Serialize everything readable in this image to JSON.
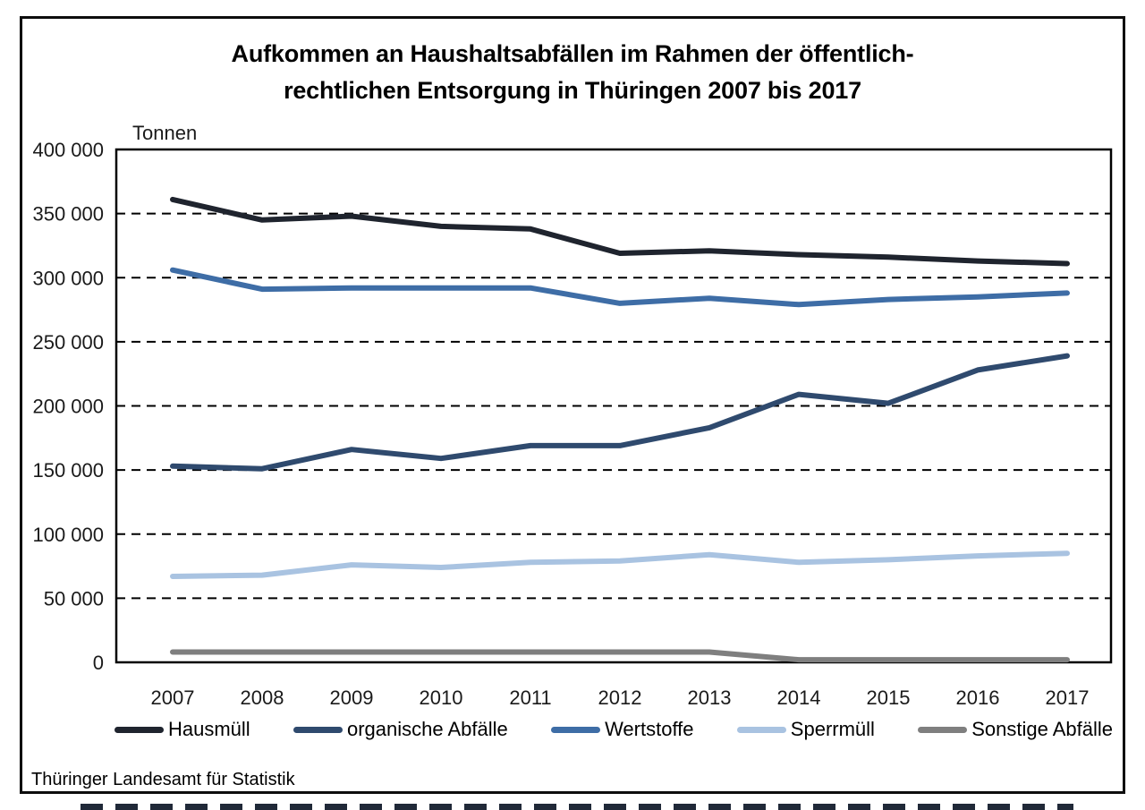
{
  "title": {
    "line1": "Aufkommen an Haushaltsabfällen im Rahmen der öffentlich-",
    "line2": "rechtlichen Entsorgung in Thüringen 2007 bis 2017"
  },
  "footer": {
    "source": "Thüringer Landesamt für Statistik"
  },
  "colors": {
    "frame": "#000000",
    "gridline": "#000000",
    "axis_text": "#1a1a1a"
  },
  "chart_data": {
    "type": "line",
    "title": "Aufkommen an Haushaltsabfällen im Rahmen der öffentlich-rechtlichen Entsorgung in Thüringen 2007 bis 2017",
    "ylabel": "Tonnen",
    "xlabel": "",
    "ylim": [
      0,
      400000
    ],
    "grid": "horizontal-dashed",
    "legend_position": "bottom",
    "x_tick_labels": [
      "2007",
      "2008",
      "2009",
      "2010",
      "2011",
      "2012",
      "2013",
      "2014",
      "2015",
      "2016",
      "2017"
    ],
    "y_ticks": [
      {
        "value": 0,
        "label": "0"
      },
      {
        "value": 50000,
        "label": "50 000"
      },
      {
        "value": 100000,
        "label": "100 000"
      },
      {
        "value": 150000,
        "label": "150 000"
      },
      {
        "value": 200000,
        "label": "200 000"
      },
      {
        "value": 250000,
        "label": "250 000"
      },
      {
        "value": 300000,
        "label": "300 000"
      },
      {
        "value": 350000,
        "label": "350 000"
      },
      {
        "value": 400000,
        "label": "400 000"
      }
    ],
    "categories": [
      2007,
      2008,
      2009,
      2010,
      2011,
      2012,
      2013,
      2014,
      2015,
      2016,
      2017
    ],
    "series": [
      {
        "name": "Hausmüll",
        "color": "#1f242e",
        "values": [
          361000,
          345000,
          348000,
          340000,
          338000,
          319000,
          321000,
          318000,
          316000,
          313000,
          311000
        ]
      },
      {
        "name": "organische Abfälle",
        "color": "#2f4a6e",
        "values": [
          153000,
          151000,
          166000,
          159000,
          169000,
          169000,
          183000,
          209000,
          202000,
          228000,
          239000
        ]
      },
      {
        "name": "Wertstoffe",
        "color": "#3e6da6",
        "values": [
          306000,
          291000,
          292000,
          292000,
          292000,
          280000,
          284000,
          279000,
          283000,
          285000,
          288000
        ]
      },
      {
        "name": "Sperrmüll",
        "color": "#a9c3e1",
        "values": [
          67000,
          68000,
          76000,
          74000,
          78000,
          79000,
          84000,
          78000,
          80000,
          83000,
          85000
        ]
      },
      {
        "name": "Sonstige Abfälle",
        "color": "#7f7f7f",
        "values": [
          8000,
          8000,
          8000,
          8000,
          8000,
          8000,
          8000,
          2000,
          2000,
          2000,
          2000
        ]
      }
    ]
  }
}
